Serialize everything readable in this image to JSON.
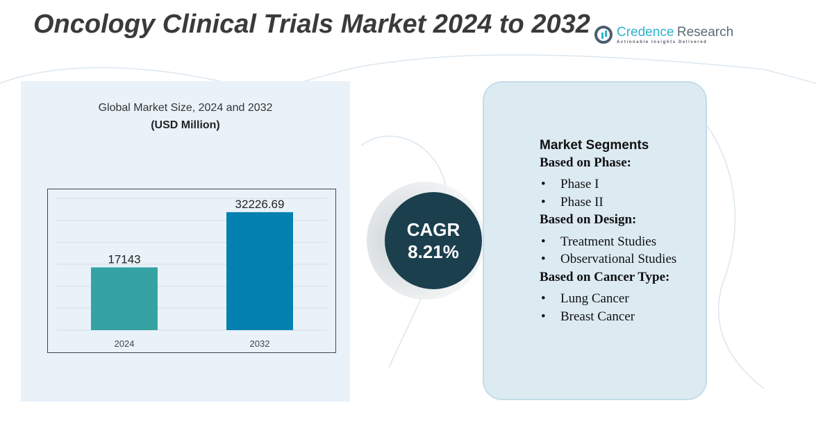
{
  "title": "Oncology Clinical Trials Market 2024 to 2032",
  "logo": {
    "name_part1": "Credence",
    "name_part2": "Research",
    "tagline": "Actionable Insights Delivered"
  },
  "chart_subtitle": "Global Market Size, 2024 and 2032",
  "chart_unit": "(USD Million)",
  "chart_data": {
    "type": "bar",
    "categories": [
      "2024",
      "2032"
    ],
    "values": [
      17143,
      32226.69
    ],
    "data_labels": [
      "17143",
      "32226.69"
    ],
    "ylim": [
      0,
      36000
    ],
    "grid": true,
    "colors": [
      "#35a3a3",
      "#0581b1"
    ]
  },
  "cagr": {
    "label": "CAGR",
    "value": "8.21%"
  },
  "segments": {
    "title": "Market Segments",
    "groups": [
      {
        "heading": "Based on Phase:",
        "items": [
          "Phase I",
          "Phase II"
        ]
      },
      {
        "heading": "Based on Design:",
        "items": [
          "Treatment Studies",
          "Observational Studies"
        ]
      },
      {
        "heading": "Based on Cancer Type:",
        "items": [
          "Lung Cancer",
          "Breast Cancer"
        ]
      }
    ]
  }
}
